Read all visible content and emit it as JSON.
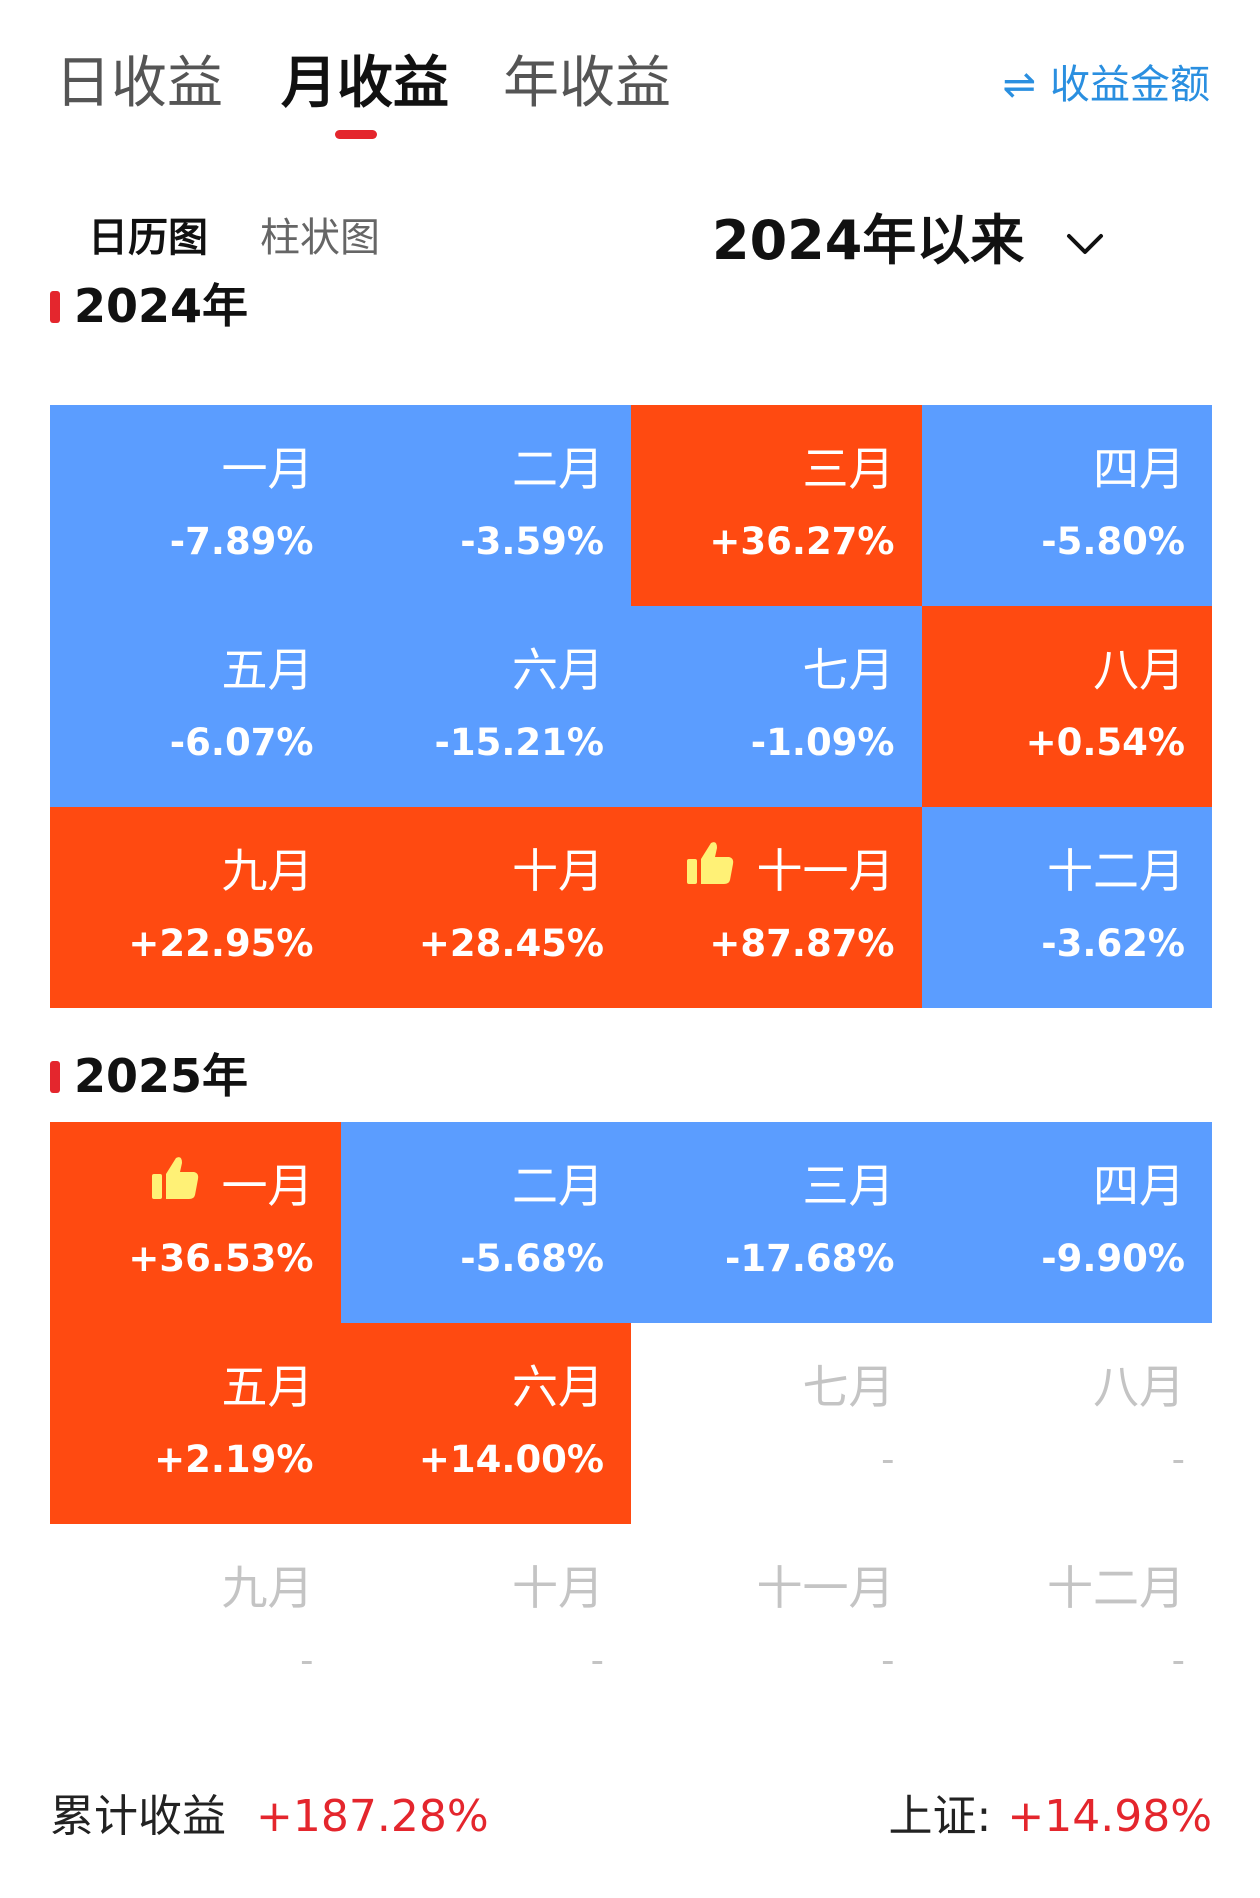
{
  "tabs": [
    {
      "label": "日收益",
      "active": false
    },
    {
      "label": "月收益",
      "active": true
    },
    {
      "label": "年收益",
      "active": false
    }
  ],
  "toggle": {
    "icon": "swap-icon",
    "label": "收益金额"
  },
  "views": [
    {
      "label": "日历图",
      "active": true
    },
    {
      "label": "柱状图",
      "active": false
    }
  ],
  "range": {
    "label": "2024年以来",
    "icon": "chevron-down-icon"
  },
  "colors": {
    "positive": "#ff4a11",
    "negative": "#5b9dff",
    "accent": "#e4262d",
    "toggle": "#2a8fe0",
    "empty_text": "#c4c4c4"
  },
  "years": [
    {
      "label": "2024年",
      "months": [
        {
          "month": "一月",
          "value": "-7.89%",
          "sign": "neg"
        },
        {
          "month": "二月",
          "value": "-3.59%",
          "sign": "neg"
        },
        {
          "month": "三月",
          "value": "+36.27%",
          "sign": "pos"
        },
        {
          "month": "四月",
          "value": "-5.80%",
          "sign": "neg"
        },
        {
          "month": "五月",
          "value": "-6.07%",
          "sign": "neg"
        },
        {
          "month": "六月",
          "value": "-15.21%",
          "sign": "neg"
        },
        {
          "month": "七月",
          "value": "-1.09%",
          "sign": "neg"
        },
        {
          "month": "八月",
          "value": "+0.54%",
          "sign": "pos"
        },
        {
          "month": "九月",
          "value": "+22.95%",
          "sign": "pos"
        },
        {
          "month": "十月",
          "value": "+28.45%",
          "sign": "pos"
        },
        {
          "month": "十一月",
          "value": "+87.87%",
          "sign": "pos",
          "best": true
        },
        {
          "month": "十二月",
          "value": "-3.62%",
          "sign": "neg"
        }
      ]
    },
    {
      "label": "2025年",
      "months": [
        {
          "month": "一月",
          "value": "+36.53%",
          "sign": "pos",
          "best": true
        },
        {
          "month": "二月",
          "value": "-5.68%",
          "sign": "neg"
        },
        {
          "month": "三月",
          "value": "-17.68%",
          "sign": "neg"
        },
        {
          "month": "四月",
          "value": "-9.90%",
          "sign": "neg"
        },
        {
          "month": "五月",
          "value": "+2.19%",
          "sign": "pos"
        },
        {
          "month": "六月",
          "value": "+14.00%",
          "sign": "pos"
        },
        {
          "month": "七月",
          "value": "-",
          "sign": "empty"
        },
        {
          "month": "八月",
          "value": "-",
          "sign": "empty"
        },
        {
          "month": "九月",
          "value": "-",
          "sign": "empty"
        },
        {
          "month": "十月",
          "value": "-",
          "sign": "empty"
        },
        {
          "month": "十一月",
          "value": "-",
          "sign": "empty"
        },
        {
          "month": "十二月",
          "value": "-",
          "sign": "empty"
        }
      ]
    }
  ],
  "footer": {
    "cumulative_label": "累计收益",
    "cumulative_value": "+187.28%",
    "index_label": "上证:",
    "index_value": "+14.98%"
  }
}
